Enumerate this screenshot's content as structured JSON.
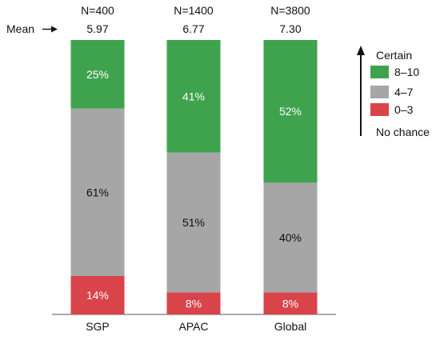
{
  "chart_data": {
    "type": "bar",
    "stacked": true,
    "normalized": true,
    "categories": [
      "SGP",
      "APAC",
      "Global"
    ],
    "sample_sizes": [
      "N=400",
      "N=1400",
      "N=3800"
    ],
    "mean_label": "Mean",
    "means": [
      "5.97",
      "6.77",
      "7.30"
    ],
    "series": [
      {
        "name": "0–3",
        "color": "#d9434a",
        "values": [
          14,
          8,
          8
        ],
        "labels": [
          "14%",
          "8%",
          "8%"
        ]
      },
      {
        "name": "4–7",
        "color": "#a6a6a6",
        "values": [
          61,
          51,
          40
        ],
        "labels": [
          "61%",
          "51%",
          "40%"
        ]
      },
      {
        "name": "8–10",
        "color": "#3fa34d",
        "values": [
          25,
          41,
          52
        ],
        "labels": [
          "25%",
          "41%",
          "52%"
        ]
      }
    ],
    "legend": {
      "position": "right",
      "top_label": "Certain",
      "bottom_label": "No chance",
      "order": [
        "8–10",
        "4–7",
        "0–3"
      ]
    },
    "ylim": [
      0,
      100
    ],
    "grid": false
  }
}
